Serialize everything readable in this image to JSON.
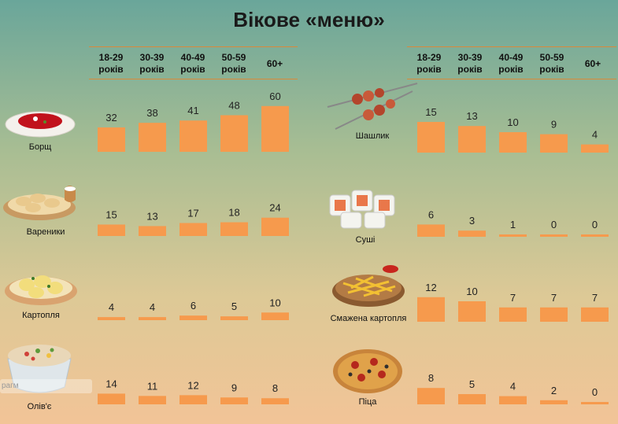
{
  "title": "Вікове «меню»",
  "age_groups": [
    {
      "line1": "18-29",
      "line2": "років"
    },
    {
      "line1": "30-39",
      "line2": "років"
    },
    {
      "line1": "40-49",
      "line2": "років"
    },
    {
      "line1": "50-59",
      "line2": "років"
    },
    {
      "line1": "60+",
      "line2": ""
    }
  ],
  "watermark": "рагм",
  "colors": {
    "bar": "#f69a4d",
    "header_line": "#d9893a"
  },
  "chart_data": [
    {
      "type": "bar",
      "categories": [
        "18-29 років",
        "30-39 років",
        "40-49 років",
        "50-59 років",
        "60+"
      ],
      "series": [
        {
          "name": "Борщ",
          "values": [
            32,
            38,
            41,
            48,
            60
          ]
        },
        {
          "name": "Вареники",
          "values": [
            15,
            13,
            17,
            18,
            24
          ]
        },
        {
          "name": "Картопля",
          "values": [
            4,
            4,
            6,
            5,
            10
          ]
        },
        {
          "name": "Олів'є",
          "values": [
            14,
            11,
            12,
            9,
            8
          ]
        }
      ]
    },
    {
      "type": "bar",
      "categories": [
        "18-29 років",
        "30-39 років",
        "40-49 років",
        "50-59 років",
        "60+"
      ],
      "series": [
        {
          "name": "Шашлик",
          "values": [
            15,
            13,
            10,
            9,
            4
          ]
        },
        {
          "name": "Суші",
          "values": [
            6,
            3,
            1,
            0,
            0
          ]
        },
        {
          "name": "Смажена картопля",
          "values": [
            12,
            10,
            7,
            7,
            7
          ]
        },
        {
          "name": "Піца",
          "values": [
            8,
            5,
            4,
            2,
            0
          ]
        }
      ]
    }
  ]
}
